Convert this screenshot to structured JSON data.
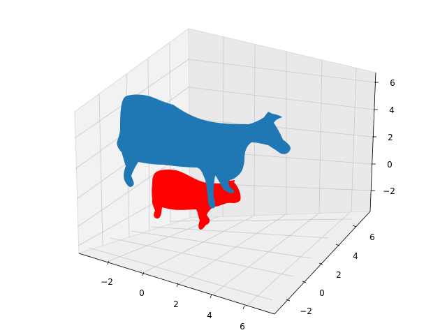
{
  "chart_data": {
    "type": "scatter",
    "projection": "3d",
    "title": "",
    "grid": true,
    "axes": {
      "x": {
        "range": [
          -3.5,
          7
        ],
        "ticks": [
          -2,
          0,
          2,
          4,
          6
        ],
        "tick_labels": [
          "−2",
          "0",
          "2",
          "4",
          "6"
        ]
      },
      "y": {
        "range": [
          -3.5,
          7
        ],
        "ticks": [
          -2,
          0,
          2,
          4,
          6
        ],
        "tick_labels": [
          "−2",
          "0",
          "2",
          "4",
          "6"
        ]
      },
      "z": {
        "range": [
          -3.5,
          7
        ],
        "ticks": [
          -2,
          0,
          2,
          4,
          6
        ],
        "tick_labels": [
          "−2",
          "0",
          "2",
          "4",
          "6"
        ]
      }
    },
    "series": [
      {
        "color": "#1f77b4",
        "description_shape": "cow point cloud, large"
      },
      {
        "color": "#ff0000",
        "description_shape": "cow point cloud, small"
      }
    ]
  }
}
